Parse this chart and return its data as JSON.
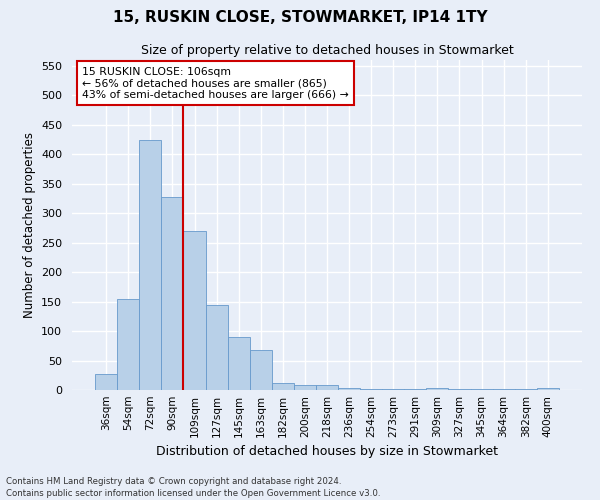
{
  "title1": "15, RUSKIN CLOSE, STOWMARKET, IP14 1TY",
  "title2": "Size of property relative to detached houses in Stowmarket",
  "xlabel": "Distribution of detached houses by size in Stowmarket",
  "ylabel": "Number of detached properties",
  "footer1": "Contains HM Land Registry data © Crown copyright and database right 2024.",
  "footer2": "Contains public sector information licensed under the Open Government Licence v3.0.",
  "categories": [
    "36sqm",
    "54sqm",
    "72sqm",
    "90sqm",
    "109sqm",
    "127sqm",
    "145sqm",
    "163sqm",
    "182sqm",
    "200sqm",
    "218sqm",
    "236sqm",
    "254sqm",
    "273sqm",
    "291sqm",
    "309sqm",
    "327sqm",
    "345sqm",
    "364sqm",
    "382sqm",
    "400sqm"
  ],
  "values": [
    27,
    155,
    425,
    328,
    270,
    145,
    90,
    68,
    12,
    9,
    9,
    3,
    2,
    1,
    1,
    4,
    1,
    1,
    1,
    1,
    3
  ],
  "bar_color": "#b8d0e8",
  "bar_edge_color": "#6699cc",
  "vline_x": 3.5,
  "vline_color": "#cc0000",
  "ylim": [
    0,
    560
  ],
  "yticks": [
    0,
    50,
    100,
    150,
    200,
    250,
    300,
    350,
    400,
    450,
    500,
    550
  ],
  "annotation_title": "15 RUSKIN CLOSE: 106sqm",
  "annotation_line2": "← 56% of detached houses are smaller (865)",
  "annotation_line3": "43% of semi-detached houses are larger (666) →",
  "annotation_box_color": "#cc0000",
  "bg_color": "#e8eef8",
  "plot_bg_color": "#e8eef8",
  "grid_color": "#ffffff",
  "title_fontsize": 11,
  "subtitle_fontsize": 9
}
